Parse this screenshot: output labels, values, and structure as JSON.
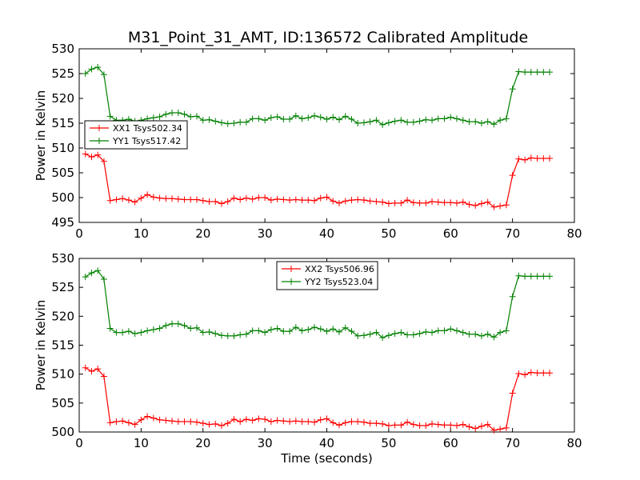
{
  "figure": {
    "title": "M31_Point_31_AMT, ID:136572 Calibrated Amplitude",
    "background": "#ffffff"
  },
  "chart_data": [
    {
      "type": "line",
      "id": "top-panel",
      "ylabel": "Power in Kelvin",
      "xlabel": "",
      "xlim": [
        0,
        80
      ],
      "ylim": [
        495,
        530
      ],
      "xticks": [
        0,
        10,
        20,
        30,
        40,
        50,
        60,
        70,
        80
      ],
      "yticks": [
        495,
        500,
        505,
        510,
        515,
        520,
        525,
        530
      ],
      "grid": false,
      "legend_position": "center-left",
      "x": [
        1,
        2,
        3,
        4,
        5,
        6,
        7,
        8,
        9,
        10,
        11,
        12,
        13,
        14,
        15,
        16,
        17,
        18,
        19,
        20,
        21,
        22,
        23,
        24,
        25,
        26,
        27,
        28,
        29,
        30,
        31,
        32,
        33,
        34,
        35,
        36,
        37,
        38,
        39,
        40,
        41,
        42,
        43,
        44,
        45,
        46,
        47,
        48,
        49,
        50,
        51,
        52,
        53,
        54,
        55,
        56,
        57,
        58,
        59,
        60,
        61,
        62,
        63,
        64,
        65,
        66,
        67,
        68,
        69,
        70,
        71,
        72,
        73,
        74,
        75,
        76
      ],
      "series": [
        {
          "name": "XX1 Tsys502.34",
          "color": "#ff0000",
          "values": [
            508.8,
            508.2,
            508.6,
            507.3,
            499.4,
            499.6,
            499.8,
            499.5,
            499.1,
            499.9,
            500.6,
            500.1,
            499.9,
            499.8,
            499.8,
            499.7,
            499.6,
            499.6,
            499.6,
            499.4,
            499.2,
            499.2,
            498.8,
            499.2,
            499.9,
            499.6,
            499.9,
            499.7,
            500.0,
            500.0,
            499.5,
            499.7,
            499.6,
            499.5,
            499.6,
            499.5,
            499.5,
            499.4,
            499.9,
            500.1,
            499.3,
            498.9,
            499.3,
            499.5,
            499.6,
            499.5,
            499.3,
            499.2,
            499.1,
            498.8,
            498.9,
            498.9,
            499.5,
            499.0,
            498.9,
            498.9,
            499.2,
            499.1,
            499.0,
            499.0,
            498.9,
            499.1,
            498.6,
            498.4,
            498.8,
            499.1,
            498.1,
            498.3,
            498.5,
            504.5,
            507.8,
            507.6,
            508.0,
            507.9,
            507.9,
            507.9
          ]
        },
        {
          "name": "YY1 Tsys517.42",
          "color": "#008000",
          "values": [
            525.0,
            525.9,
            526.3,
            524.8,
            516.4,
            515.6,
            515.6,
            515.8,
            515.4,
            515.6,
            515.9,
            516.1,
            516.3,
            516.8,
            517.1,
            517.1,
            516.8,
            516.3,
            516.4,
            515.6,
            515.7,
            515.4,
            515.1,
            514.9,
            515.0,
            515.2,
            515.2,
            515.9,
            515.9,
            515.6,
            516.1,
            516.3,
            515.8,
            515.8,
            516.5,
            515.9,
            516.1,
            516.5,
            516.2,
            515.8,
            516.2,
            515.7,
            516.4,
            515.8,
            515.0,
            515.1,
            515.3,
            515.6,
            514.7,
            515.1,
            515.4,
            515.6,
            515.2,
            515.2,
            515.4,
            515.7,
            515.6,
            515.9,
            515.9,
            516.2,
            515.9,
            515.6,
            515.3,
            515.3,
            515.0,
            515.3,
            514.8,
            515.6,
            515.9,
            521.9,
            525.4,
            525.3,
            525.3,
            525.3,
            525.3,
            525.3
          ]
        }
      ]
    },
    {
      "type": "line",
      "id": "bottom-panel",
      "ylabel": "Power in Kelvin",
      "xlabel": "Time (seconds)",
      "xlim": [
        0,
        80
      ],
      "ylim": [
        500,
        530
      ],
      "xticks": [
        0,
        10,
        20,
        30,
        40,
        50,
        60,
        70,
        80
      ],
      "yticks": [
        500,
        505,
        510,
        515,
        520,
        525,
        530
      ],
      "grid": false,
      "legend_position": "top-center",
      "x": [
        1,
        2,
        3,
        4,
        5,
        6,
        7,
        8,
        9,
        10,
        11,
        12,
        13,
        14,
        15,
        16,
        17,
        18,
        19,
        20,
        21,
        22,
        23,
        24,
        25,
        26,
        27,
        28,
        29,
        30,
        31,
        32,
        33,
        34,
        35,
        36,
        37,
        38,
        39,
        40,
        41,
        42,
        43,
        44,
        45,
        46,
        47,
        48,
        49,
        50,
        51,
        52,
        53,
        54,
        55,
        56,
        57,
        58,
        59,
        60,
        61,
        62,
        63,
        64,
        65,
        66,
        67,
        68,
        69,
        70,
        71,
        72,
        73,
        74,
        75,
        76
      ],
      "series": [
        {
          "name": "XX2 Tsys506.96",
          "color": "#ff0000",
          "values": [
            511.1,
            510.5,
            510.9,
            509.6,
            501.6,
            501.8,
            501.9,
            501.6,
            501.3,
            502.1,
            502.7,
            502.4,
            502.1,
            502.0,
            501.9,
            501.8,
            501.8,
            501.8,
            501.7,
            501.5,
            501.3,
            501.4,
            501.1,
            501.5,
            502.2,
            501.8,
            502.2,
            502.0,
            502.3,
            502.2,
            501.8,
            502.0,
            501.9,
            501.8,
            501.9,
            501.8,
            501.8,
            501.7,
            502.1,
            502.3,
            501.6,
            501.2,
            501.6,
            501.8,
            501.8,
            501.7,
            501.5,
            501.5,
            501.4,
            501.1,
            501.2,
            501.2,
            501.7,
            501.3,
            501.1,
            501.1,
            501.4,
            501.3,
            501.2,
            501.2,
            501.1,
            501.3,
            500.9,
            500.6,
            501.0,
            501.3,
            500.3,
            500.5,
            500.7,
            506.7,
            510.1,
            509.9,
            510.3,
            510.2,
            510.2,
            510.2
          ]
        },
        {
          "name": "YY2 Tsys523.04",
          "color": "#008000",
          "values": [
            526.8,
            527.5,
            527.9,
            526.4,
            517.9,
            517.2,
            517.2,
            517.4,
            517.0,
            517.2,
            517.5,
            517.7,
            517.9,
            518.4,
            518.7,
            518.7,
            518.4,
            517.9,
            518.0,
            517.2,
            517.3,
            517.0,
            516.7,
            516.6,
            516.6,
            516.8,
            516.9,
            517.5,
            517.5,
            517.2,
            517.7,
            517.9,
            517.4,
            517.4,
            518.1,
            517.5,
            517.7,
            518.1,
            517.8,
            517.4,
            517.8,
            517.3,
            518.0,
            517.4,
            516.6,
            516.7,
            516.9,
            517.2,
            516.3,
            516.7,
            517.0,
            517.2,
            516.8,
            516.8,
            517.0,
            517.3,
            517.2,
            517.5,
            517.5,
            517.8,
            517.5,
            517.2,
            516.9,
            516.9,
            516.6,
            516.9,
            516.4,
            517.2,
            517.5,
            523.4,
            527.0,
            526.9,
            526.9,
            526.9,
            526.9,
            526.9
          ]
        }
      ]
    }
  ]
}
